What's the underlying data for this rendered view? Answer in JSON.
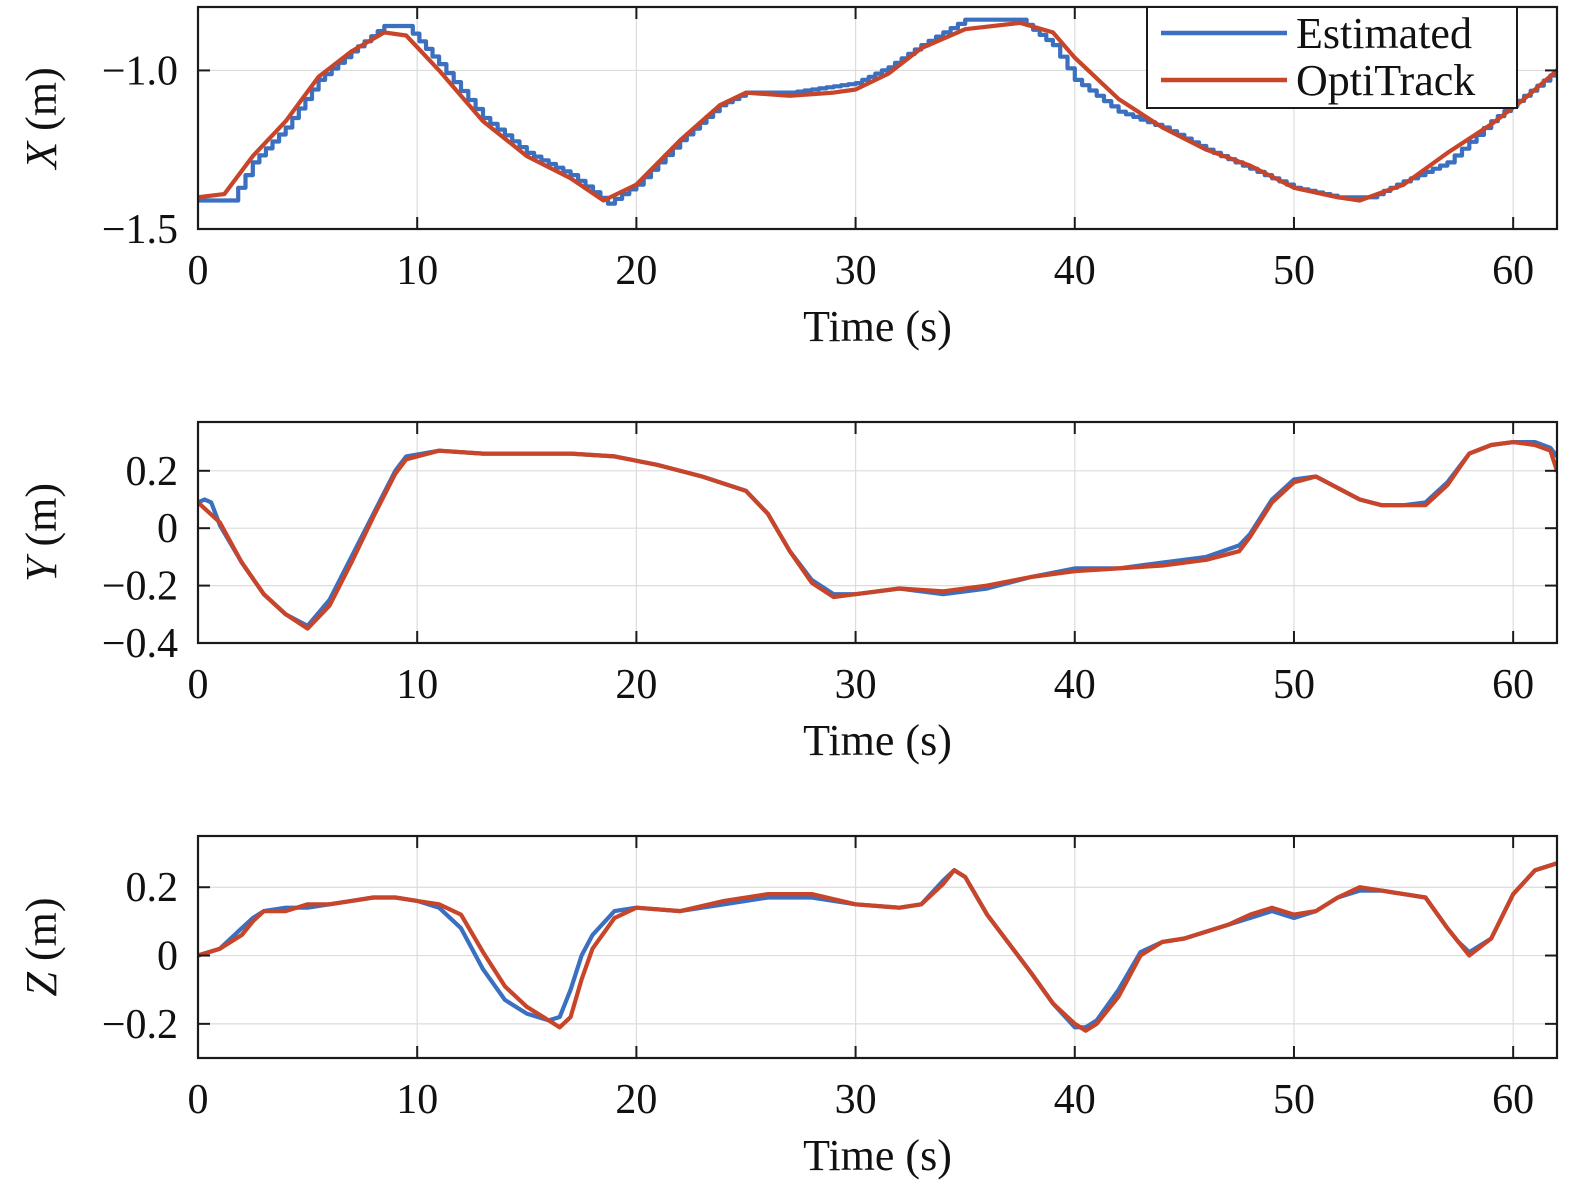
{
  "colors": {
    "estimated": "#3B6FBF",
    "optitrack": "#C8452A"
  },
  "legend": {
    "position": "top-right",
    "entries": [
      "Estimated",
      "OptiTrack"
    ]
  },
  "chart_data": [
    {
      "type": "line",
      "ylabel_var": "X",
      "ylabel_unit": " (m)",
      "xlabel": "Time (s)",
      "xlim": [
        0,
        62
      ],
      "ylim": [
        -1.5,
        -0.8
      ],
      "grid": true,
      "xticks": [
        0,
        10,
        20,
        30,
        40,
        50,
        60
      ],
      "xtick_labels": [
        "0",
        "10",
        "20",
        "30",
        "40",
        "50",
        "60"
      ],
      "yticks": [
        -1.5,
        -1.0
      ],
      "ytick_labels": [
        "−1.5",
        "−1.0"
      ],
      "series": [
        {
          "name": "Estimated",
          "step": true,
          "x": [
            0,
            1.5,
            2.5,
            4,
            5.5,
            7,
            8.5,
            9.5,
            11,
            13,
            15,
            17,
            18.7,
            20,
            22,
            23.8,
            25,
            27,
            29,
            30,
            31.5,
            33,
            35,
            37.5,
            39,
            40,
            42,
            44,
            46,
            48,
            50,
            52,
            53.5,
            55,
            57,
            59,
            60.5,
            62
          ],
          "y": [
            -1.41,
            -1.41,
            -1.29,
            -1.18,
            -1.03,
            -0.94,
            -0.86,
            -0.86,
            -0.98,
            -1.15,
            -1.26,
            -1.33,
            -1.42,
            -1.36,
            -1.22,
            -1.11,
            -1.07,
            -1.07,
            -1.05,
            -1.04,
            -0.99,
            -0.92,
            -0.84,
            -0.84,
            -0.92,
            -1.03,
            -1.13,
            -1.18,
            -1.25,
            -1.31,
            -1.37,
            -1.4,
            -1.4,
            -1.35,
            -1.29,
            -1.16,
            -1.08,
            -1.0
          ]
        },
        {
          "name": "OptiTrack",
          "x": [
            0,
            1.2,
            2.5,
            4,
            5.5,
            7,
            8.5,
            9.5,
            11,
            13,
            15,
            17,
            18.5,
            20,
            22,
            23.8,
            25,
            27,
            29,
            30,
            31.5,
            33,
            35,
            37.5,
            39,
            40,
            42,
            44,
            46,
            48,
            50,
            52,
            53,
            55,
            57,
            59,
            60.5,
            62
          ],
          "y": [
            -1.4,
            -1.39,
            -1.27,
            -1.16,
            -1.02,
            -0.94,
            -0.88,
            -0.89,
            -1.0,
            -1.16,
            -1.27,
            -1.34,
            -1.41,
            -1.36,
            -1.22,
            -1.11,
            -1.07,
            -1.08,
            -1.07,
            -1.06,
            -1.01,
            -0.93,
            -0.87,
            -0.85,
            -0.88,
            -0.96,
            -1.09,
            -1.18,
            -1.25,
            -1.3,
            -1.37,
            -1.4,
            -1.41,
            -1.36,
            -1.26,
            -1.17,
            -1.09,
            -1.0
          ]
        }
      ]
    },
    {
      "type": "line",
      "ylabel_var": "Y",
      "ylabel_unit": " (m)",
      "xlabel": "Time (s)",
      "xlim": [
        0,
        62
      ],
      "ylim": [
        -0.4,
        0.37
      ],
      "grid": true,
      "xticks": [
        0,
        10,
        20,
        30,
        40,
        50,
        60
      ],
      "xtick_labels": [
        "0",
        "10",
        "20",
        "30",
        "40",
        "50",
        "60"
      ],
      "yticks": [
        -0.4,
        -0.2,
        0,
        0.2
      ],
      "ytick_labels": [
        "−0.4",
        "−0.2",
        "0",
        "0.2"
      ],
      "series": [
        {
          "name": "Estimated",
          "x": [
            0,
            0.3,
            0.6,
            1,
            2,
            3,
            4,
            5,
            6,
            7,
            8,
            9,
            9.5,
            11,
            13,
            15,
            17,
            19,
            21,
            23,
            25,
            26,
            27,
            28,
            29,
            30,
            32,
            34,
            36,
            38,
            40,
            42,
            44,
            46,
            47.5,
            48,
            49,
            50,
            51,
            52,
            53,
            54,
            55,
            56,
            57,
            58,
            59,
            60,
            61,
            61.7,
            62
          ],
          "y": [
            0.09,
            0.1,
            0.09,
            0.01,
            -0.12,
            -0.23,
            -0.3,
            -0.34,
            -0.25,
            -0.1,
            0.05,
            0.2,
            0.25,
            0.27,
            0.26,
            0.26,
            0.26,
            0.25,
            0.22,
            0.18,
            0.13,
            0.05,
            -0.08,
            -0.18,
            -0.23,
            -0.23,
            -0.21,
            -0.23,
            -0.21,
            -0.17,
            -0.14,
            -0.14,
            -0.12,
            -0.1,
            -0.06,
            -0.02,
            0.1,
            0.17,
            0.18,
            0.14,
            0.1,
            0.08,
            0.08,
            0.09,
            0.16,
            0.26,
            0.29,
            0.3,
            0.3,
            0.28,
            0.25
          ]
        },
        {
          "name": "OptiTrack",
          "x": [
            0,
            1,
            2,
            3,
            4,
            5,
            6,
            7,
            8,
            9,
            9.5,
            11,
            13,
            15,
            17,
            19,
            21,
            23,
            25,
            26,
            27,
            28,
            29,
            30,
            32,
            34,
            36,
            38,
            40,
            42,
            44,
            46,
            47.5,
            48,
            49,
            50,
            51,
            52,
            53,
            54,
            55,
            56,
            57,
            58,
            59,
            60,
            61,
            61.7,
            62
          ],
          "y": [
            0.09,
            0.02,
            -0.12,
            -0.23,
            -0.3,
            -0.35,
            -0.27,
            -0.12,
            0.04,
            0.19,
            0.24,
            0.27,
            0.26,
            0.26,
            0.26,
            0.25,
            0.22,
            0.18,
            0.13,
            0.05,
            -0.08,
            -0.19,
            -0.24,
            -0.23,
            -0.21,
            -0.22,
            -0.2,
            -0.17,
            -0.15,
            -0.14,
            -0.13,
            -0.11,
            -0.08,
            -0.03,
            0.09,
            0.16,
            0.18,
            0.14,
            0.1,
            0.08,
            0.08,
            0.08,
            0.15,
            0.26,
            0.29,
            0.3,
            0.29,
            0.27,
            0.2
          ]
        }
      ]
    },
    {
      "type": "line",
      "ylabel_var": "Z",
      "ylabel_unit": " (m)",
      "xlabel": "Time (s)",
      "xlim": [
        0,
        62
      ],
      "ylim": [
        -0.3,
        0.35
      ],
      "grid": true,
      "xticks": [
        0,
        10,
        20,
        30,
        40,
        50,
        60
      ],
      "xtick_labels": [
        "0",
        "10",
        "20",
        "30",
        "40",
        "50",
        "60"
      ],
      "yticks": [
        -0.2,
        0,
        0.2
      ],
      "ytick_labels": [
        "−0.2",
        "0",
        "0.2"
      ],
      "series": [
        {
          "name": "Estimated",
          "x": [
            0,
            1,
            2,
            2.5,
            3,
            4,
            5,
            6,
            7,
            8,
            9,
            10,
            11,
            12,
            13,
            14,
            15,
            16,
            16.5,
            17,
            17.5,
            18,
            19,
            20,
            22,
            24,
            26,
            28,
            30,
            32,
            33,
            34,
            34.5,
            35,
            36,
            38,
            39,
            40,
            40.5,
            41,
            42,
            43,
            44,
            45,
            46,
            47,
            48,
            49,
            50,
            51,
            52,
            53,
            54,
            55,
            56,
            57,
            57.5,
            58,
            59,
            60,
            61,
            62
          ],
          "y": [
            0.0,
            0.02,
            0.08,
            0.11,
            0.13,
            0.14,
            0.14,
            0.15,
            0.16,
            0.17,
            0.17,
            0.16,
            0.14,
            0.08,
            -0.04,
            -0.13,
            -0.17,
            -0.19,
            -0.18,
            -0.1,
            0.0,
            0.06,
            0.13,
            0.14,
            0.13,
            0.15,
            0.17,
            0.17,
            0.15,
            0.14,
            0.15,
            0.22,
            0.25,
            0.23,
            0.12,
            -0.05,
            -0.14,
            -0.21,
            -0.21,
            -0.19,
            -0.1,
            0.01,
            0.04,
            0.05,
            0.07,
            0.09,
            0.11,
            0.13,
            0.11,
            0.13,
            0.17,
            0.19,
            0.19,
            0.18,
            0.17,
            0.08,
            0.04,
            0.01,
            0.05,
            0.18,
            0.25,
            0.27
          ]
        },
        {
          "name": "OptiTrack",
          "x": [
            0,
            1,
            2,
            2.5,
            3,
            4,
            5,
            6,
            7,
            8,
            9,
            10,
            11,
            12,
            13,
            14,
            15,
            16,
            16.5,
            17,
            17.5,
            18,
            19,
            20,
            22,
            24,
            26,
            28,
            30,
            32,
            33,
            34,
            34.5,
            35,
            36,
            38,
            39,
            40,
            40.5,
            41,
            42,
            43,
            44,
            45,
            46,
            47,
            48,
            49,
            50,
            51,
            52,
            53,
            54,
            55,
            56,
            57,
            57.5,
            58,
            59,
            60,
            61,
            62
          ],
          "y": [
            0.0,
            0.02,
            0.06,
            0.1,
            0.13,
            0.13,
            0.15,
            0.15,
            0.16,
            0.17,
            0.17,
            0.16,
            0.15,
            0.12,
            0.01,
            -0.09,
            -0.15,
            -0.19,
            -0.21,
            -0.18,
            -0.07,
            0.02,
            0.11,
            0.14,
            0.13,
            0.16,
            0.18,
            0.18,
            0.15,
            0.14,
            0.15,
            0.21,
            0.25,
            0.23,
            0.12,
            -0.05,
            -0.14,
            -0.2,
            -0.22,
            -0.2,
            -0.12,
            0.0,
            0.04,
            0.05,
            0.07,
            0.09,
            0.12,
            0.14,
            0.12,
            0.13,
            0.17,
            0.2,
            0.19,
            0.18,
            0.17,
            0.08,
            0.04,
            0.0,
            0.05,
            0.18,
            0.25,
            0.27
          ]
        }
      ]
    }
  ]
}
